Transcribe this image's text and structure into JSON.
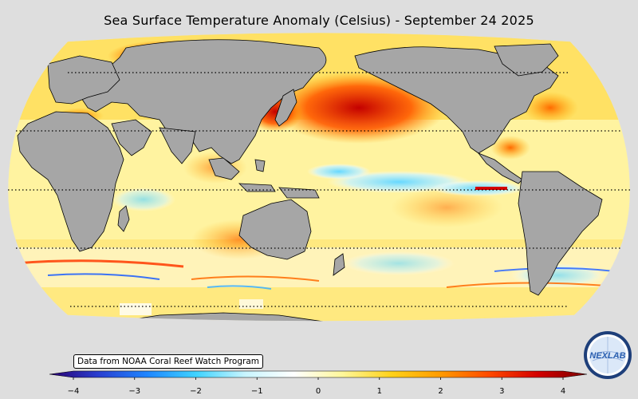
{
  "title": "Sea Surface Temperature Anomaly (Celsius) - September 24 2025",
  "credit": "Data from NOAA Coral Reef Watch Program",
  "logo": {
    "text": "NEXLAB",
    "icon": "nexlab-globe-logo"
  },
  "colorbar": {
    "min": -4,
    "max": 4,
    "ticks": [
      "−4",
      "−3",
      "−2",
      "−1",
      "0",
      "1",
      "2",
      "3",
      "4"
    ],
    "colors": [
      "#2a0070",
      "#2a3fd0",
      "#1f86ff",
      "#3fd3ff",
      "#c8f5ff",
      "#ffffff",
      "#fff79a",
      "#ffd21a",
      "#ff9b00",
      "#ff4a00",
      "#d30000",
      "#7a0000"
    ]
  },
  "map": {
    "projection": "Robinson, Pacific-centered",
    "land_color": "#a6a6a6",
    "ocean_missing_color": "#ffffff",
    "graticule": "dotted latitude lines"
  }
}
